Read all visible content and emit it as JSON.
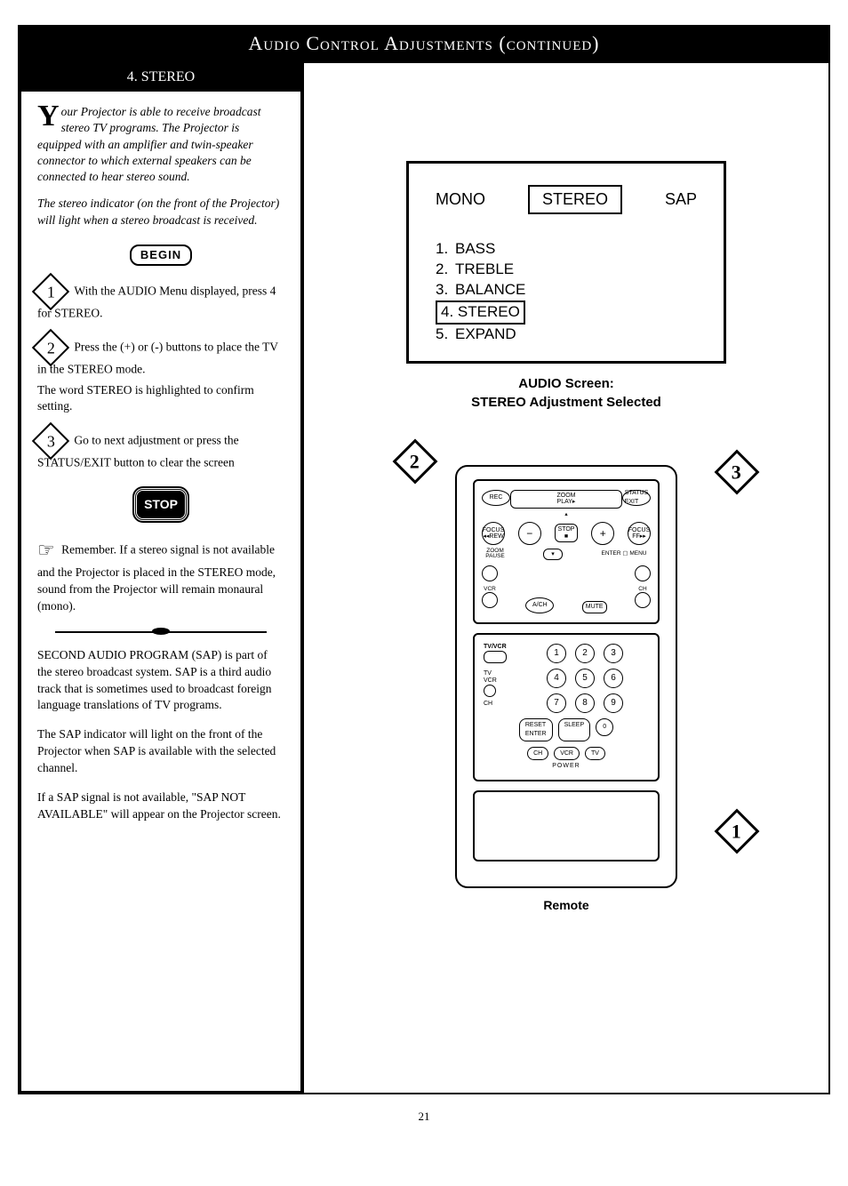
{
  "page_title": "Audio Control Adjustments (continued)",
  "page_number": "21",
  "section": {
    "number": "4.",
    "title": "STEREO"
  },
  "left": {
    "intro_dropcap": "Y",
    "intro": "our Projector is able to receive broadcast stereo TV programs. The Projector is equipped with an amplifier and twin-speaker connector to which external speakers can be connected to hear stereo sound.",
    "intro2": "The stereo indicator (on the front of the Projector) will light when a stereo broadcast is received.",
    "begin_label": "BEGIN",
    "step1_num": "1",
    "step1": "With the AUDIO Menu displayed, press 4 for STEREO.",
    "step2_num": "2",
    "step2_a": "Press the (+) or (-) buttons to place the TV in the STEREO mode.",
    "step2_b": "The word STEREO is highlighted to confirm setting.",
    "step3_num": "3",
    "step3": "Go to next adjustment or press the STATUS/EXIT button to clear the screen",
    "stop_label": "STOP",
    "remember": "Remember. If a stereo signal is not available and the Projector is placed in the STEREO mode, sound from the Projector will remain monaural (mono).",
    "sap1": "SECOND AUDIO PROGRAM (SAP) is part of the stereo broadcast system. SAP is a third audio track that is sometimes used to broadcast foreign language translations of TV programs.",
    "sap2": "The SAP indicator will light on the front of the Projector when SAP is available with the selected channel.",
    "sap3": "If a SAP signal is not available, \"SAP NOT AVAILABLE\" will appear on the Projector screen."
  },
  "screen": {
    "mono": "MONO",
    "stereo": "STEREO",
    "sap": "SAP",
    "items": [
      {
        "n": "1.",
        "label": "BASS",
        "boxed": false
      },
      {
        "n": "2.",
        "label": "TREBLE",
        "boxed": false
      },
      {
        "n": "3.",
        "label": "BALANCE",
        "boxed": false
      },
      {
        "n": "4.",
        "label": "STEREO",
        "boxed": true
      },
      {
        "n": "5.",
        "label": "EXPAND",
        "boxed": false
      }
    ],
    "caption1": "AUDIO Screen:",
    "caption2": "STEREO Adjustment Selected"
  },
  "remote": {
    "rec": "REC",
    "zoom_play": "ZOOM\nPLAY▸",
    "status_exit": "STATUS\nEXIT",
    "focus_rew": "FOCUS\n◂◂REW",
    "minus": "−",
    "stop": "STOP\n■",
    "plus": "+",
    "focus_ff": "FOCUS\nFF▸▸",
    "zoom_pause": "ZOOM\nPAUSE",
    "down": "▾",
    "enter_menu": "ENTER ▢ MENU",
    "vcr": "VCR",
    "a_ch": "A/CH",
    "mute": "MUTE",
    "ch": "CH",
    "tvvcr": "TV/VCR",
    "tv": "TV",
    "vcr2": "VCR",
    "ch2": "CH",
    "reset_enter": "RESET\nENTER",
    "sleep": "SLEEP",
    "ch_btn": "CH",
    "vcr_btn": "VCR",
    "tv_btn": "TV",
    "power": "POWER",
    "caption": "Remote",
    "co1": "1",
    "co2": "2",
    "co3": "3"
  }
}
